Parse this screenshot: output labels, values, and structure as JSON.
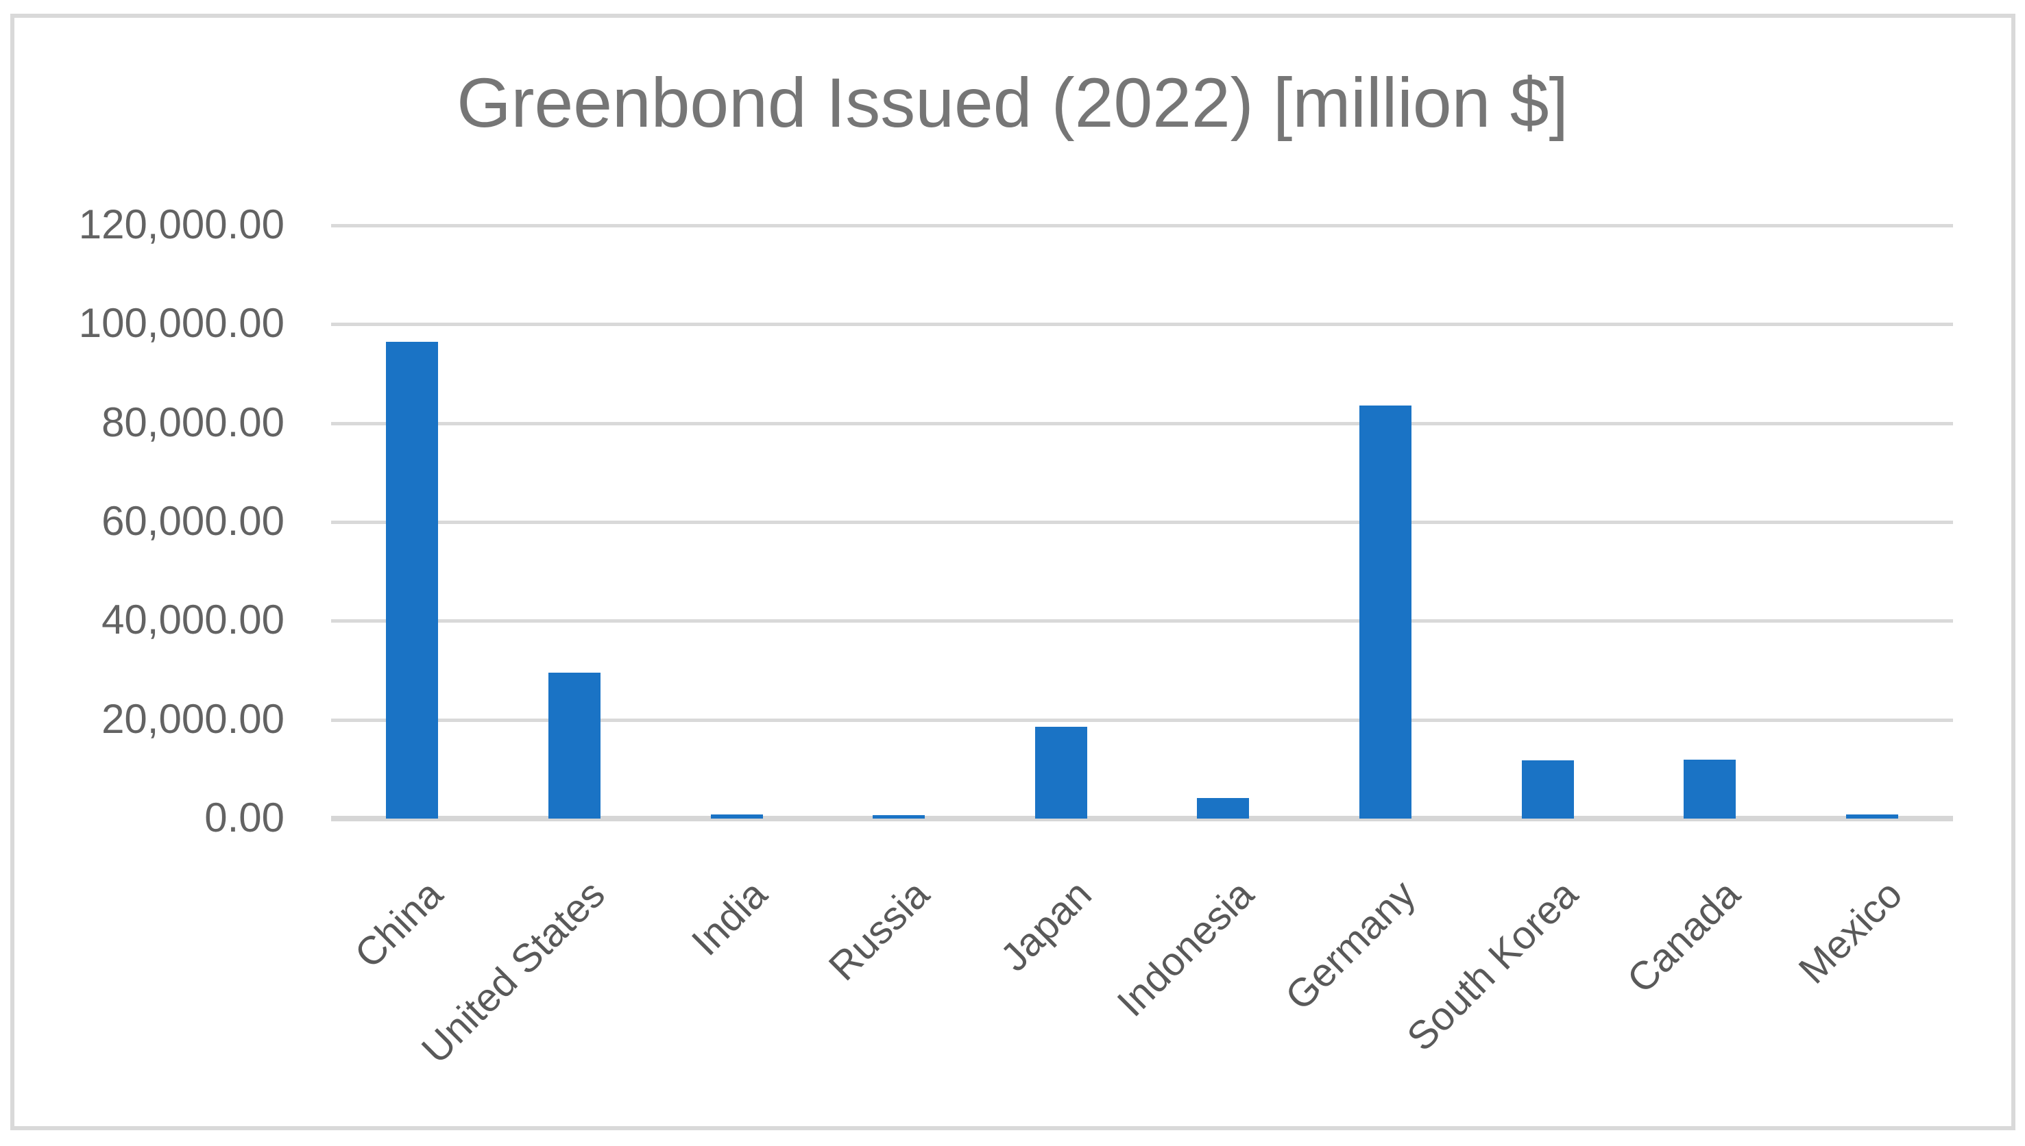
{
  "chart_data": {
    "type": "bar",
    "title": "Greenbond Issued (2022) [million $]",
    "xlabel": "",
    "ylabel": "",
    "unit": "million $",
    "categories": [
      "China",
      "United States",
      "India",
      "Russia",
      "Japan",
      "Indonesia",
      "Germany",
      "South Korea",
      "Canada",
      "Mexico"
    ],
    "series": [
      {
        "name": "Greenbond Issued 2022",
        "values": [
          96400,
          29500,
          800,
          700,
          18600,
          4200,
          83500,
          11800,
          11900,
          800
        ]
      }
    ],
    "ylim": [
      0,
      120000
    ],
    "y_ticks": [
      {
        "value": 0,
        "label": "0.00"
      },
      {
        "value": 20000,
        "label": "20,000.00"
      },
      {
        "value": 40000,
        "label": "40,000.00"
      },
      {
        "value": 60000,
        "label": "60,000.00"
      },
      {
        "value": 80000,
        "label": "80,000.00"
      },
      {
        "value": 100000,
        "label": "100,000.00"
      },
      {
        "value": 120000,
        "label": "120,000.00"
      }
    ],
    "grid": "horizontal",
    "legend": "none",
    "x_label_rotation_deg": 45,
    "colors": {
      "bar": "#1a73c5",
      "gridline": "#d9d9d9",
      "axis_line": "#d6d6d6",
      "title_text": "#767676",
      "tick_text": "#595959",
      "frame_border": "#d9d9d9",
      "background": "#ffffff"
    }
  }
}
